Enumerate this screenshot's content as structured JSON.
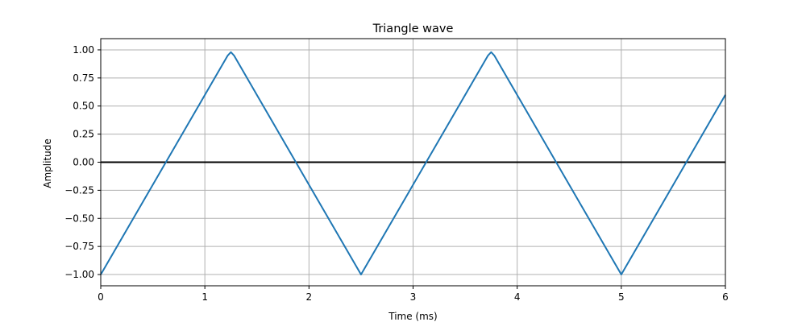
{
  "chart_data": {
    "type": "line",
    "title": "Triangle wave",
    "xlabel": "Time (ms)",
    "ylabel": "Amplitude",
    "xlim": [
      0,
      6
    ],
    "ylim": [
      -1.1,
      1.1
    ],
    "xticks": [
      0,
      1,
      2,
      3,
      4,
      5,
      6
    ],
    "xtick_labels": [
      "0",
      "1",
      "2",
      "3",
      "4",
      "5",
      "6"
    ],
    "yticks": [
      -1.0,
      -0.75,
      -0.5,
      -0.25,
      0.0,
      0.25,
      0.5,
      0.75,
      1.0
    ],
    "ytick_labels": [
      "−1.00",
      "−0.75",
      "−0.50",
      "−0.25",
      "0.00",
      "0.25",
      "0.50",
      "0.75",
      "1.00"
    ],
    "grid": true,
    "hline": {
      "y": 0,
      "color": "#000000"
    },
    "series": [
      {
        "color": "#1f77b4",
        "x": [
          0,
          1.22,
          1.25,
          1.28,
          2.5,
          3.72,
          3.75,
          3.78,
          5.0,
          6.0
        ],
        "y": [
          -1.0,
          0.95,
          0.98,
          0.95,
          -1.0,
          0.95,
          0.98,
          0.95,
          -1.0,
          0.6
        ]
      }
    ]
  }
}
